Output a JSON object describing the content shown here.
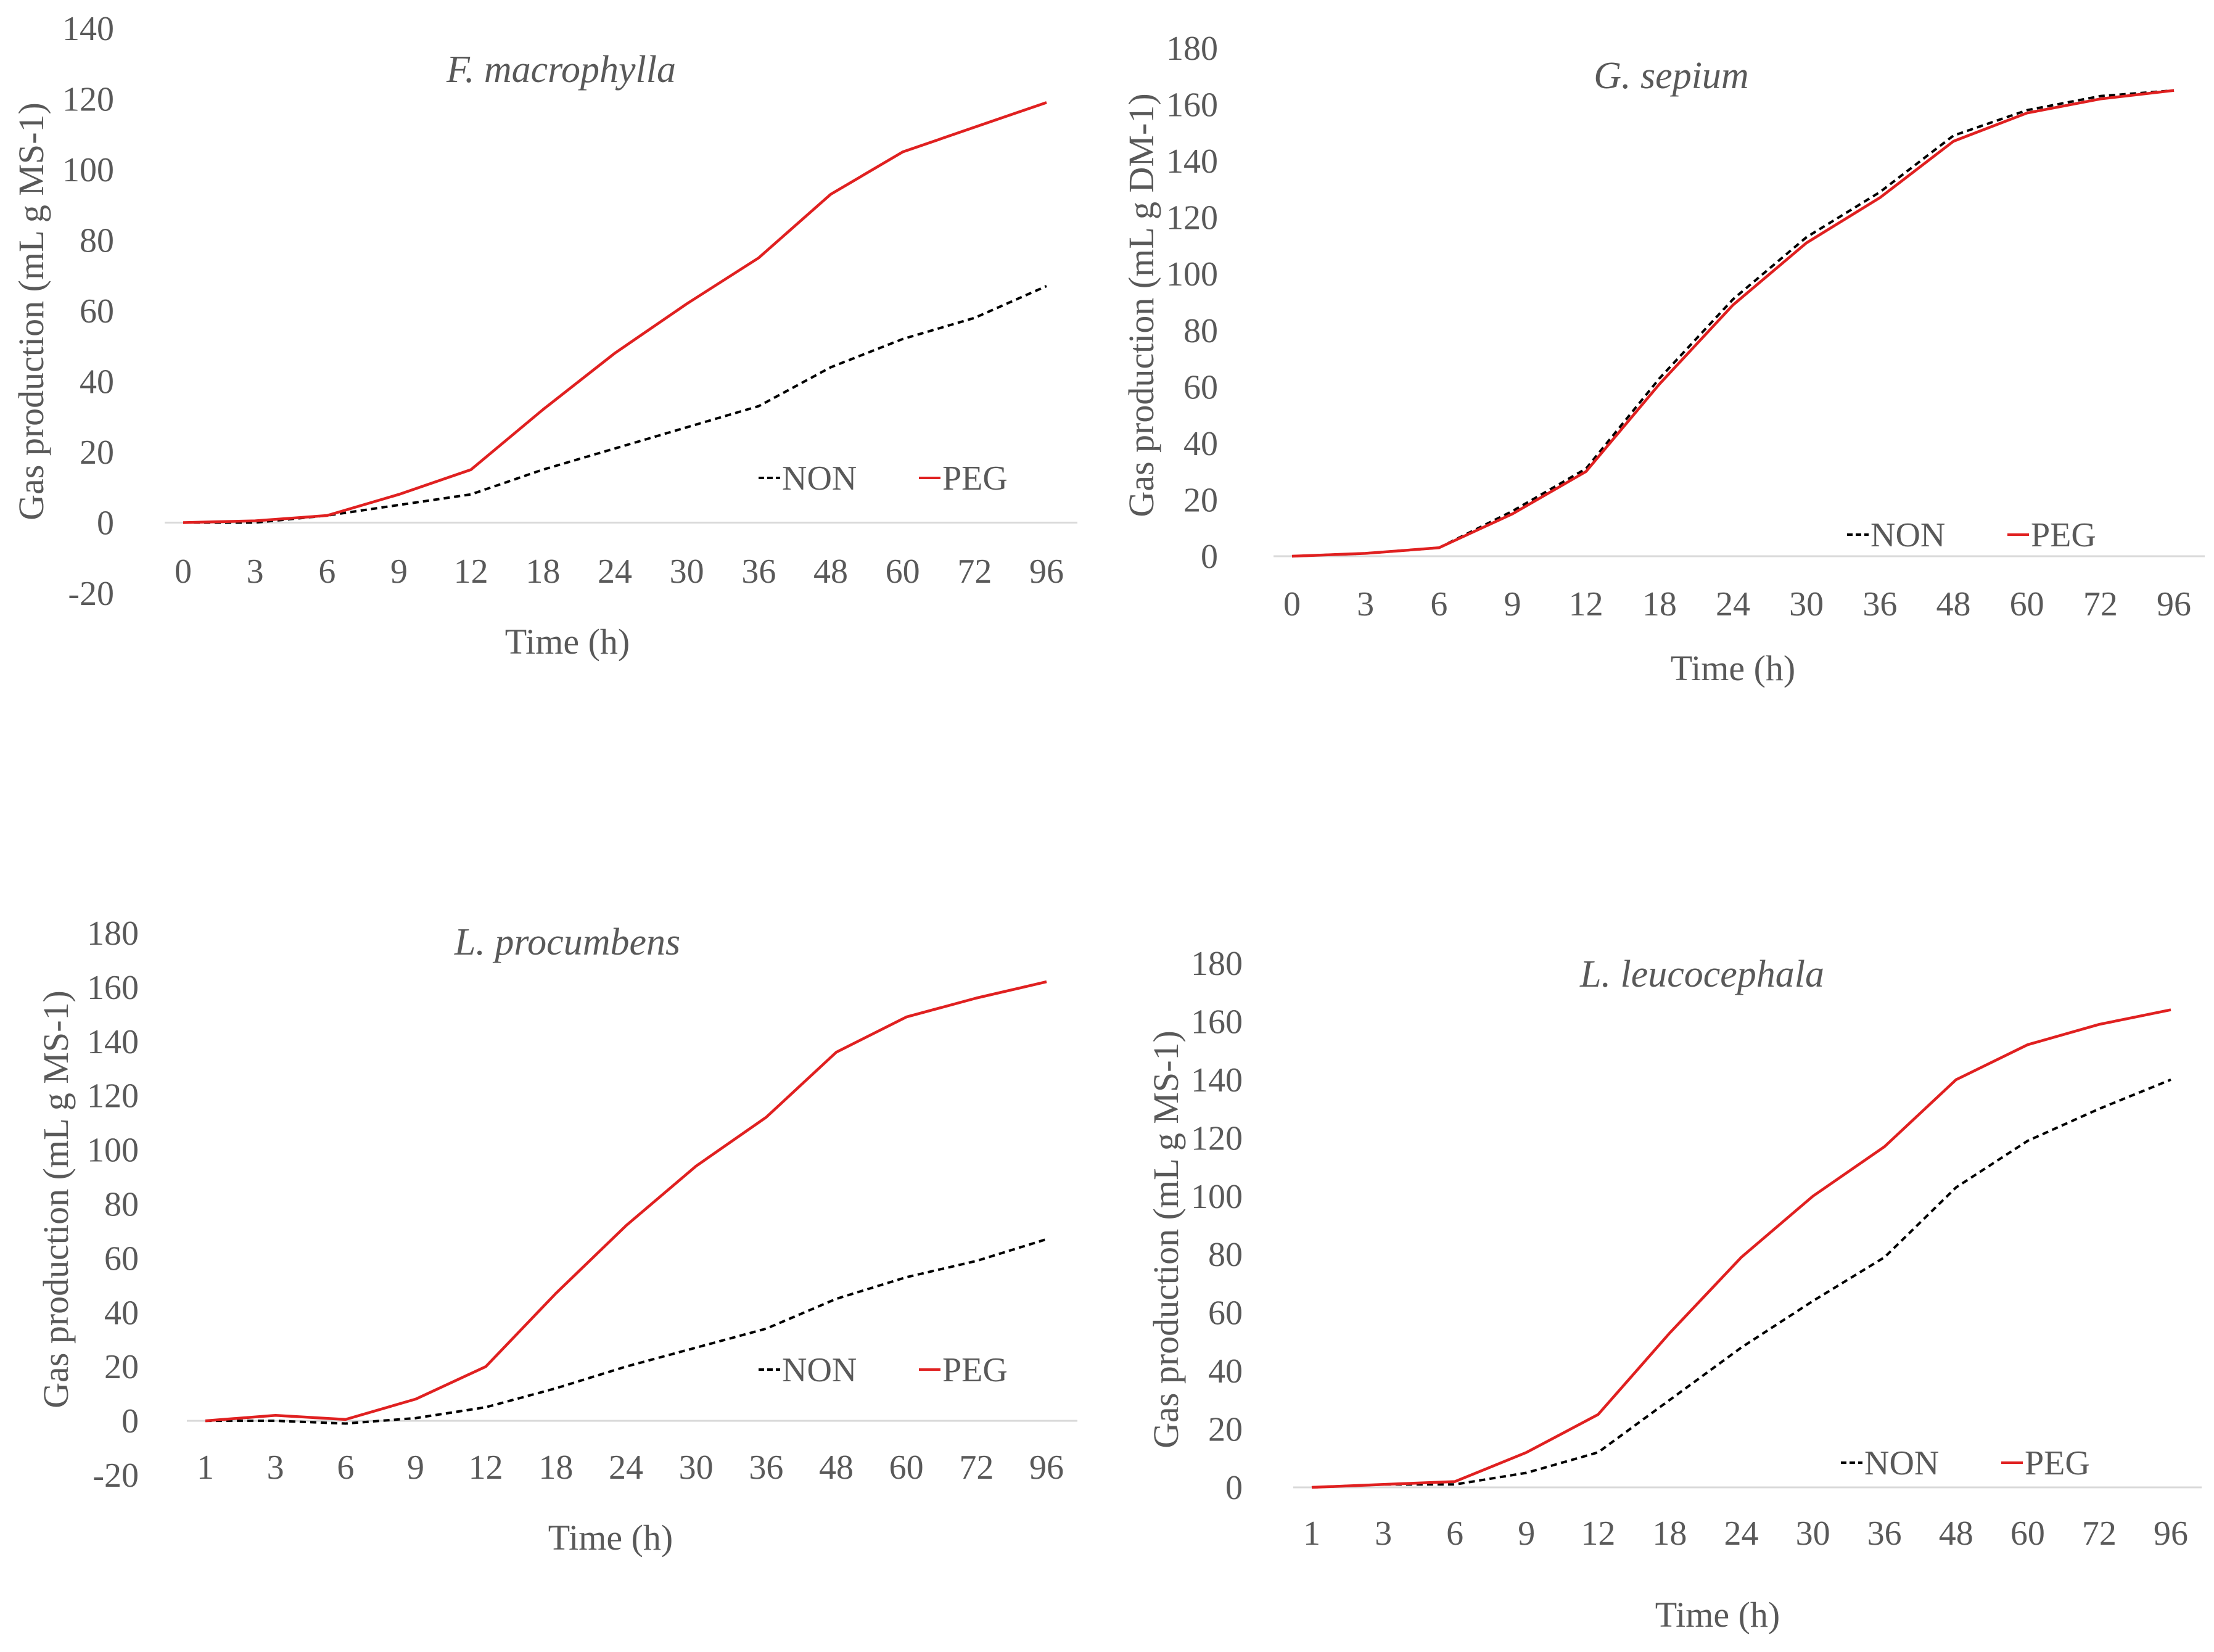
{
  "chart_data": [
    {
      "type": "line",
      "title": "F. macrophylla",
      "xlabel": "Time (h)",
      "ylabel": "Gas production (mL g MS-1)",
      "categories": [
        "0",
        "3",
        "6",
        "9",
        "12",
        "18",
        "24",
        "30",
        "36",
        "48",
        "60",
        "72",
        "96"
      ],
      "ylim": [
        -20,
        140
      ],
      "yticks": [
        "-20",
        "0",
        "20",
        "40",
        "60",
        "80",
        "100",
        "120",
        "140"
      ],
      "series": [
        {
          "name": "NON",
          "values": [
            0,
            0,
            2,
            5,
            8,
            15,
            21,
            27,
            33,
            44,
            52,
            58,
            67
          ],
          "color": "#000000",
          "dash": "dashed"
        },
        {
          "name": "PEG",
          "values": [
            0,
            0.5,
            2,
            8,
            15,
            32,
            48,
            62,
            75,
            93,
            105,
            112,
            119
          ],
          "color": "#e02020",
          "dash": "solid"
        }
      ],
      "legend": "bottom-right"
    },
    {
      "type": "line",
      "title": "G. sepium",
      "xlabel": "Time (h)",
      "ylabel": "Gas production (mL g DM-1)",
      "categories": [
        "0",
        "3",
        "6",
        "9",
        "12",
        "18",
        "24",
        "30",
        "36",
        "48",
        "60",
        "72",
        "96"
      ],
      "ylim": [
        0,
        180
      ],
      "yticks": [
        "0",
        "20",
        "40",
        "60",
        "80",
        "100",
        "120",
        "140",
        "160",
        "180"
      ],
      "series": [
        {
          "name": "NON",
          "values": [
            0,
            1,
            3,
            16,
            31,
            63,
            91,
            113,
            129,
            149,
            158,
            163,
            165
          ],
          "color": "#000000",
          "dash": "dashed"
        },
        {
          "name": "PEG",
          "values": [
            0,
            1,
            3,
            15,
            30,
            61,
            89,
            111,
            127,
            147,
            157,
            162,
            165
          ],
          "color": "#e02020",
          "dash": "solid"
        }
      ],
      "legend": "bottom-right"
    },
    {
      "type": "line",
      "title": "L. procumbens",
      "xlabel": "Time (h)",
      "ylabel": "Gas production (mL g MS-1)",
      "categories": [
        "1",
        "3",
        "6",
        "9",
        "12",
        "18",
        "24",
        "30",
        "36",
        "48",
        "60",
        "72",
        "96"
      ],
      "ylim": [
        -20,
        180
      ],
      "yticks": [
        "-20",
        "0",
        "20",
        "40",
        "60",
        "80",
        "100",
        "120",
        "140",
        "160",
        "180"
      ],
      "series": [
        {
          "name": "NON",
          "values": [
            0,
            0,
            -1,
            1,
            5,
            12,
            20,
            27,
            34,
            45,
            53,
            59,
            67
          ],
          "color": "#000000",
          "dash": "dashed"
        },
        {
          "name": "PEG",
          "values": [
            0,
            2,
            0.5,
            8,
            20,
            47,
            72,
            94,
            112,
            136,
            149,
            156,
            162
          ],
          "color": "#e02020",
          "dash": "solid"
        }
      ],
      "legend": "bottom-right"
    },
    {
      "type": "line",
      "title": "L. leucocephala",
      "xlabel": "Time (h)",
      "ylabel": "Gas production (mL g MS-1)",
      "categories": [
        "1",
        "3",
        "6",
        "9",
        "12",
        "18",
        "24",
        "30",
        "36",
        "48",
        "60",
        "72",
        "96"
      ],
      "ylim": [
        0,
        180
      ],
      "yticks": [
        "0",
        "20",
        "40",
        "60",
        "80",
        "100",
        "120",
        "140",
        "160",
        "180"
      ],
      "series": [
        {
          "name": "NON",
          "values": [
            0,
            1,
            1,
            5,
            12,
            30,
            48,
            64,
            79,
            103,
            119,
            130,
            140
          ],
          "color": "#000000",
          "dash": "dashed"
        },
        {
          "name": "PEG",
          "values": [
            0,
            1,
            2,
            12,
            25,
            53,
            79,
            100,
            117,
            140,
            152,
            159,
            164
          ],
          "color": "#e02020",
          "dash": "solid"
        }
      ],
      "legend": "bottom-right"
    }
  ]
}
